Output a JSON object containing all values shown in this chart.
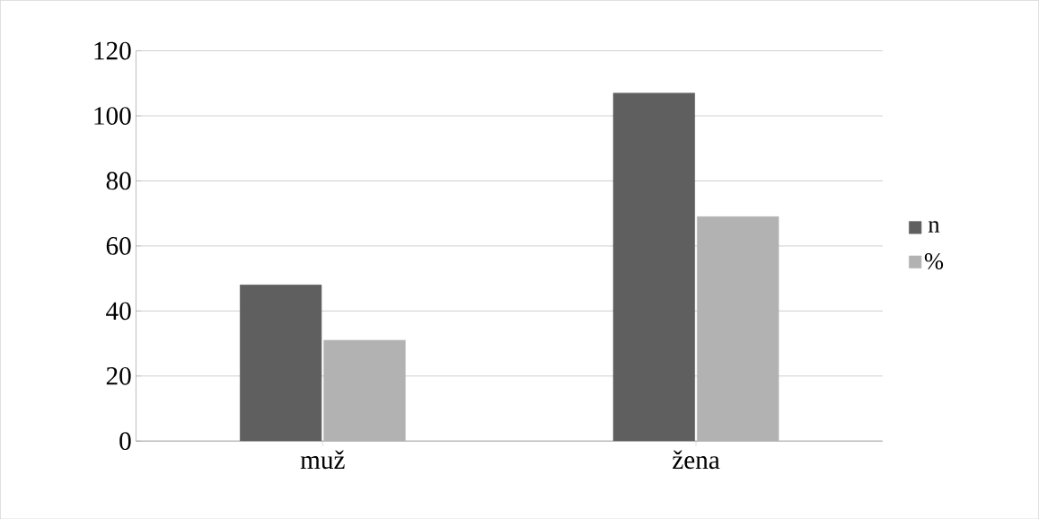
{
  "chart_data": {
    "type": "bar",
    "categories": [
      "muž",
      "žena"
    ],
    "series": [
      {
        "name": "n",
        "color": "#5f5f5f",
        "values": [
          48,
          107
        ]
      },
      {
        "name": "%",
        "color": "#b2b2b2",
        "values": [
          31,
          69
        ]
      }
    ],
    "ylim": [
      0,
      120
    ],
    "yticks": [
      0,
      20,
      40,
      60,
      80,
      100,
      120
    ],
    "grid": "y",
    "legend": "right"
  }
}
